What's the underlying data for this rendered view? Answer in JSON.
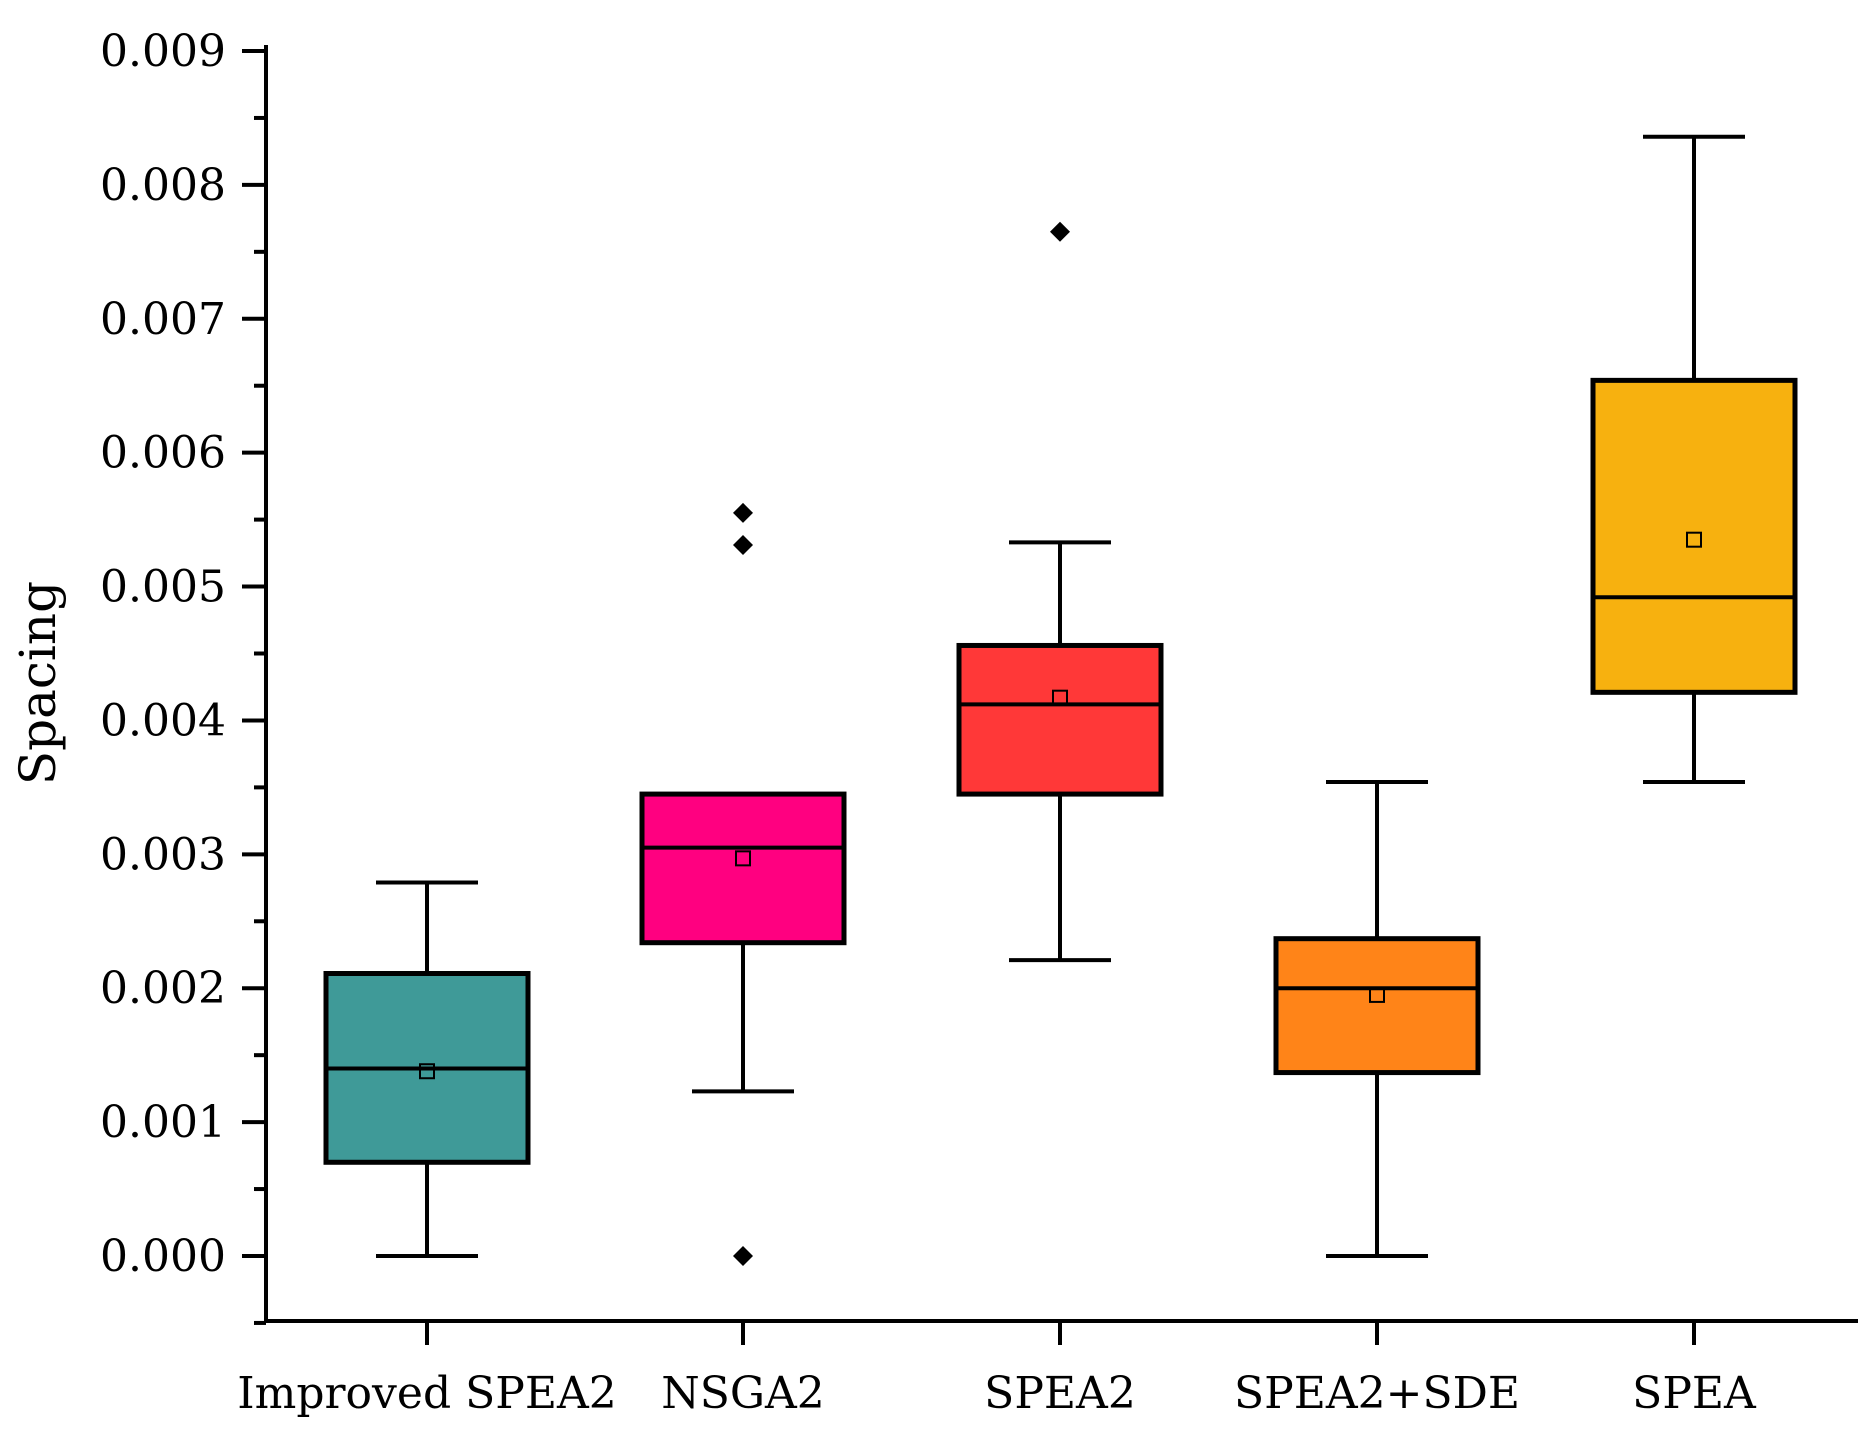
{
  "chart_data": {
    "type": "box",
    "title": "",
    "xlabel": "",
    "ylabel": "Spacing",
    "ylim": [
      -0.0005,
      0.009
    ],
    "yticks": [
      "0.000",
      "0.001",
      "0.002",
      "0.003",
      "0.004",
      "0.005",
      "0.006",
      "0.007",
      "0.008",
      "0.009"
    ],
    "ytick_values": [
      0,
      0.001,
      0.002,
      0.003,
      0.004,
      0.005,
      0.006,
      0.007,
      0.008,
      0.009
    ],
    "series": [
      {
        "name": "Improved SPEA2",
        "color": "#3f9a98",
        "whisker_low": 0.0,
        "q1": 0.0007,
        "median": 0.0014,
        "q3": 0.00211,
        "whisker_high": 0.00279,
        "mean": 0.00138,
        "outliers": []
      },
      {
        "name": "NSGA2",
        "color": "#ff0080",
        "whisker_low": 0.00123,
        "q1": 0.00234,
        "median": 0.00305,
        "q3": 0.00345,
        "whisker_high": 0.00345,
        "mean": 0.00297,
        "outliers": [
          0.00555,
          0.00531,
          0.0
        ]
      },
      {
        "name": "SPEA2",
        "color": "#ff3838",
        "whisker_low": 0.00221,
        "q1": 0.00345,
        "median": 0.00412,
        "q3": 0.00456,
        "whisker_high": 0.00533,
        "mean": 0.00417,
        "outliers": [
          0.00765
        ]
      },
      {
        "name": "SPEA2+SDE",
        "color": "#ff8418",
        "whisker_low": 0.0,
        "q1": 0.00137,
        "median": 0.002,
        "q3": 0.00237,
        "whisker_high": 0.00354,
        "mean": 0.00195,
        "outliers": []
      },
      {
        "name": "SPEA",
        "color": "#f7b10f",
        "whisker_low": 0.00354,
        "q1": 0.00421,
        "median": 0.00492,
        "q3": 0.00654,
        "whisker_high": 0.00836,
        "mean": 0.00535,
        "outliers": []
      }
    ]
  }
}
